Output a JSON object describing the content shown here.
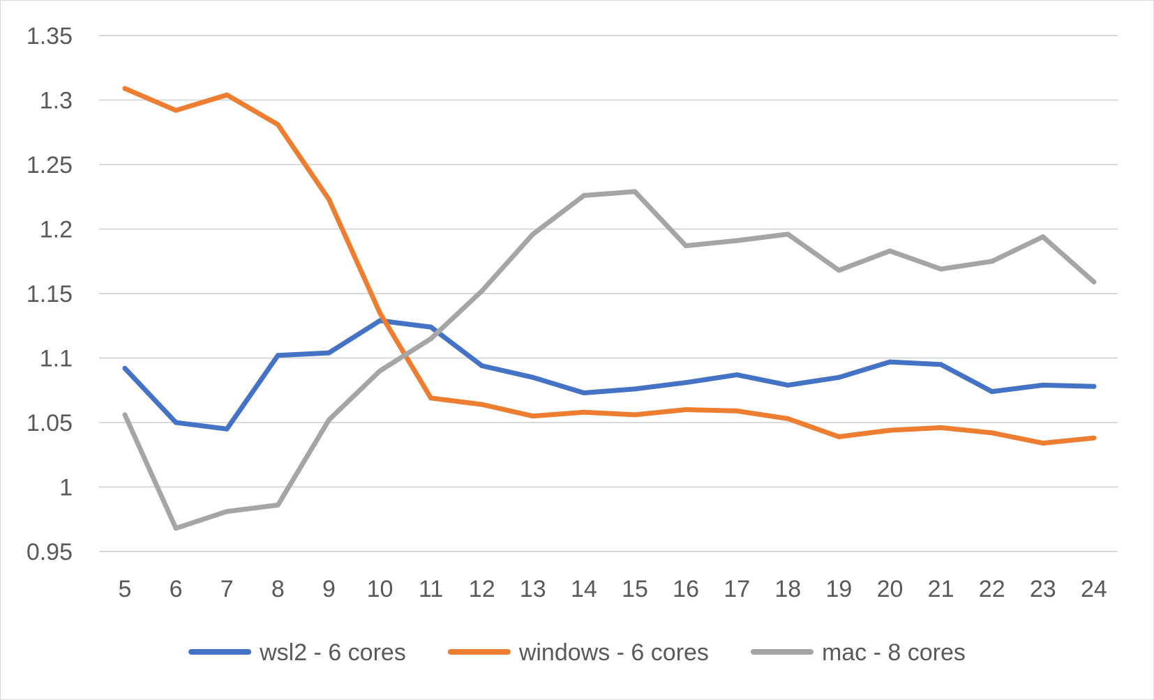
{
  "chart_data": {
    "type": "line",
    "title": "",
    "xlabel": "",
    "ylabel": "",
    "categories": [
      "5",
      "6",
      "7",
      "8",
      "9",
      "10",
      "11",
      "12",
      "13",
      "14",
      "15",
      "16",
      "17",
      "18",
      "19",
      "20",
      "21",
      "22",
      "23",
      "24"
    ],
    "ylim": [
      0.95,
      1.35
    ],
    "y_ticks": [
      "0.95",
      "1",
      "1.05",
      "1.1",
      "1.15",
      "1.2",
      "1.25",
      "1.3",
      "1.35"
    ],
    "y_tick_values": [
      0.95,
      1.0,
      1.05,
      1.1,
      1.15,
      1.2,
      1.25,
      1.3,
      1.35
    ],
    "grid": true,
    "legend_position": "bottom",
    "series": [
      {
        "name": "wsl2 - 6 cores",
        "color": "#4472c4",
        "values": [
          1.092,
          1.05,
          1.045,
          1.102,
          1.104,
          1.129,
          1.124,
          1.094,
          1.085,
          1.073,
          1.076,
          1.081,
          1.087,
          1.079,
          1.085,
          1.097,
          1.095,
          1.074,
          1.079,
          1.078
        ]
      },
      {
        "name": "windows - 6 cores",
        "color": "#ed7d31",
        "values": [
          1.309,
          1.292,
          1.304,
          1.281,
          1.223,
          1.135,
          1.069,
          1.064,
          1.055,
          1.058,
          1.056,
          1.06,
          1.059,
          1.053,
          1.039,
          1.044,
          1.046,
          1.042,
          1.034,
          1.038
        ]
      },
      {
        "name": "mac - 8 cores",
        "color": "#a5a5a5",
        "values": [
          1.056,
          0.968,
          0.981,
          0.986,
          1.052,
          1.09,
          1.115,
          1.152,
          1.196,
          1.226,
          1.229,
          1.187,
          1.191,
          1.196,
          1.168,
          1.183,
          1.169,
          1.175,
          1.194,
          1.159
        ]
      }
    ]
  }
}
